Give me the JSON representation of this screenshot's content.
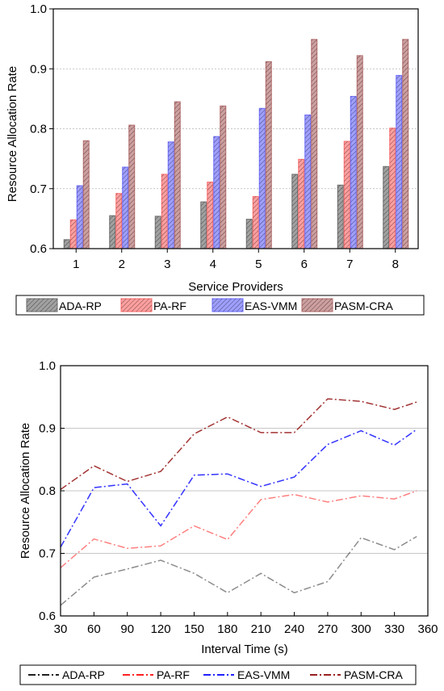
{
  "chart_data": [
    {
      "type": "bar",
      "title": "",
      "xlabel": "Service Providers",
      "ylabel": "Resource Allocation Rate",
      "categories": [
        "1",
        "2",
        "3",
        "4",
        "5",
        "6",
        "7",
        "8"
      ],
      "ylim": [
        0.6,
        1.0
      ],
      "yticks": [
        "0.6",
        "0.7",
        "0.8",
        "0.9",
        "1.0"
      ],
      "grid": "horizontal dotted",
      "legend_position": "bottom",
      "series": [
        {
          "name": "ADA-RP",
          "color": "#6e6e6e",
          "values": [
            0.615,
            0.655,
            0.654,
            0.678,
            0.649,
            0.724,
            0.706,
            0.737
          ]
        },
        {
          "name": "PA-RF",
          "color": "#ff6b6b",
          "values": [
            0.648,
            0.692,
            0.724,
            0.711,
            0.687,
            0.749,
            0.779,
            0.801
          ]
        },
        {
          "name": "EAS-VMM",
          "color": "#6b6bff",
          "values": [
            0.705,
            0.736,
            0.778,
            0.787,
            0.834,
            0.823,
            0.854,
            0.889
          ]
        },
        {
          "name": "PASM-CRA",
          "color": "#b36b6b",
          "values": [
            0.78,
            0.806,
            0.845,
            0.838,
            0.912,
            0.949,
            0.922,
            0.949
          ]
        }
      ]
    },
    {
      "type": "line",
      "title": "",
      "xlabel": "Interval Time (s)",
      "ylabel": "Resource Allocation Rate",
      "x": [
        30,
        60,
        90,
        120,
        150,
        180,
        210,
        240,
        270,
        300,
        330,
        350
      ],
      "xticks": [
        "30",
        "60",
        "90",
        "120",
        "150",
        "180",
        "210",
        "240",
        "270",
        "300",
        "330",
        "360"
      ],
      "xlim": [
        30,
        360
      ],
      "ylim": [
        0.6,
        1.0
      ],
      "yticks": [
        "0.6",
        "0.7",
        "0.8",
        "0.9",
        "1.0"
      ],
      "grid": "horizontal",
      "legend_position": "bottom",
      "series": [
        {
          "name": "ADA-RP",
          "color": "#000000",
          "values": [
            0.617,
            0.662,
            0.675,
            0.689,
            0.668,
            0.637,
            0.668,
            0.637,
            0.655,
            0.725,
            0.706,
            0.727
          ]
        },
        {
          "name": "PA-RF",
          "color": "#ff0000",
          "values": [
            0.677,
            0.723,
            0.708,
            0.712,
            0.744,
            0.722,
            0.786,
            0.794,
            0.782,
            0.792,
            0.787,
            0.8
          ]
        },
        {
          "name": "EAS-VMM",
          "color": "#0000ff",
          "values": [
            0.71,
            0.805,
            0.811,
            0.744,
            0.825,
            0.827,
            0.807,
            0.822,
            0.874,
            0.896,
            0.873,
            0.898
          ]
        },
        {
          "name": "PASM-CRA",
          "color": "#8b0000",
          "values": [
            0.802,
            0.84,
            0.815,
            0.831,
            0.891,
            0.918,
            0.893,
            0.893,
            0.947,
            0.943,
            0.93,
            0.942
          ]
        }
      ]
    }
  ]
}
